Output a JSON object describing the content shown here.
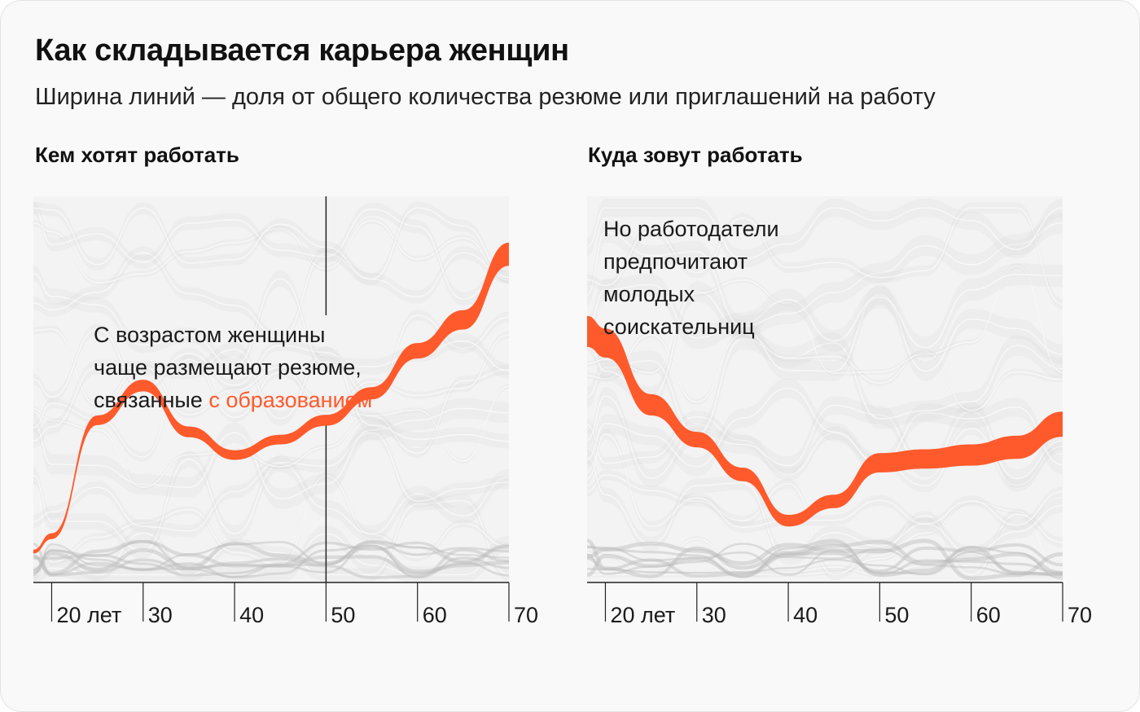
{
  "header": {
    "title": "Как складывается карьера женщин",
    "subtitle": "Ширина линий — доля от общего количества резюме или приглашений на работу"
  },
  "colors": {
    "highlight": "#ff5a2c",
    "background_lines": "#d0d0d0",
    "plot_background": "#f3f3f3",
    "axis": "#222222"
  },
  "chart_data": [
    {
      "type": "area",
      "title": "Кем хотят работать",
      "annotation": {
        "line1": "С возрастом женщины",
        "line2": "чаще размещают резюме,",
        "line3_prefix": "связанные ",
        "line3_highlight": "с образованием"
      },
      "x_tick_labels": [
        "20 лет",
        "30",
        "40",
        "50",
        "60",
        "70"
      ],
      "xlim": [
        18,
        70
      ],
      "marker_age": 50,
      "highlight_series": {
        "name": "с образованием",
        "x": [
          18,
          20,
          25,
          30,
          35,
          40,
          45,
          50,
          55,
          60,
          65,
          70
        ],
        "rank_center": [
          0.08,
          0.12,
          0.42,
          0.51,
          0.39,
          0.33,
          0.37,
          0.42,
          0.49,
          0.6,
          0.68,
          0.85
        ],
        "width_share": [
          0.01,
          0.015,
          0.025,
          0.03,
          0.028,
          0.025,
          0.025,
          0.028,
          0.032,
          0.04,
          0.05,
          0.06
        ]
      }
    },
    {
      "type": "area",
      "title": "Куда зовут работать",
      "annotation": {
        "line1": "Но работодатели",
        "line2": "предпочитают",
        "line3": "молодых",
        "line4": "соискательниц"
      },
      "x_tick_labels": [
        "20 лет",
        "30",
        "40",
        "50",
        "60",
        "70"
      ],
      "xlim": [
        18,
        70
      ],
      "highlight_series": {
        "name": "с образованием",
        "x": [
          18,
          20,
          25,
          30,
          35,
          40,
          45,
          50,
          55,
          60,
          65,
          70
        ],
        "rank_center": [
          0.65,
          0.62,
          0.46,
          0.37,
          0.28,
          0.16,
          0.21,
          0.31,
          0.32,
          0.33,
          0.35,
          0.41
        ],
        "width_share": [
          0.08,
          0.075,
          0.055,
          0.04,
          0.035,
          0.03,
          0.035,
          0.05,
          0.05,
          0.055,
          0.06,
          0.065
        ]
      }
    }
  ]
}
